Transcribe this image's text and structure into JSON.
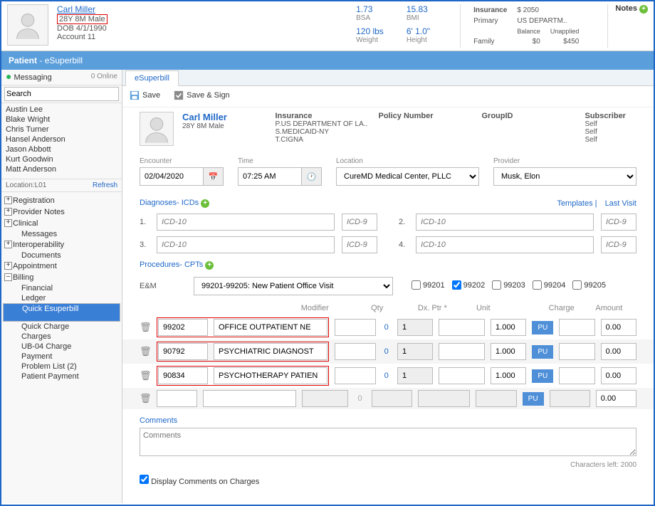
{
  "banner": {
    "name": "Carl Miller",
    "demo": "28Y 8M Male",
    "dob": "DOB 4/1/1990",
    "account": "Account 11",
    "bsa": {
      "val": "1.73",
      "lbl": "BSA"
    },
    "bmi": {
      "val": "15.83",
      "lbl": "BMI"
    },
    "weight": {
      "val": "120 lbs",
      "lbl": "Weight"
    },
    "height": {
      "val": "6' 1.0\"",
      "lbl": "Height"
    },
    "ins": {
      "hdr_ins": "Insurance",
      "hdr_amt": "$ 2050",
      "primary_lbl": "Primary",
      "primary_val": "US DEPARTM..",
      "family_lbl": "Family",
      "bal_lbl": "Balance",
      "unap_lbl": "Unapplied",
      "bal_val": "$0",
      "unap_val": "$450"
    },
    "notes": "Notes"
  },
  "titlebar": {
    "main": "Patient",
    "sub": "- eSuperbill"
  },
  "sidebar": {
    "messaging": "Messaging",
    "online": "0 Online",
    "search_lbl": "Search",
    "users": [
      "Austin Lee",
      "Blake Wright",
      "Chris Turner",
      "Hansel Anderson",
      "Jason Abbott",
      "Kurt Goodwin",
      "Matt Anderson"
    ],
    "loc": "Location:L01",
    "refresh": "Refresh",
    "tree": {
      "registration": "Registration",
      "provider_notes": "Provider Notes",
      "clinical": "Clinical",
      "messages": "Messages",
      "interop": "Interoperability",
      "documents": "Documents",
      "appointment": "Appointment",
      "billing": "Billing",
      "billing_children": [
        "Financial",
        "Ledger",
        "Quick Esuperbill",
        "Quick Charge",
        "Charges",
        "UB-04 Charge",
        "Payment",
        "Problem List (2)",
        "Patient Payment"
      ],
      "billing_selected_index": 2
    }
  },
  "content": {
    "tab": "eSuperbill",
    "save": "Save",
    "save_sign": "Save & Sign",
    "pt": {
      "name": "Carl Miller",
      "demo": "28Y 8M Male",
      "ins_hdr": "Insurance",
      "ins_lines": [
        "P.US DEPARTMENT OF LA..",
        "S.MEDICAID-NY",
        "T.CIGNA"
      ],
      "policy_hdr": "Policy Number",
      "group_hdr": "GroupID",
      "sub_hdr": "Subscriber",
      "sub_lines": [
        "Self",
        "Self",
        "Self"
      ]
    },
    "enc": {
      "encounter_lbl": "Encounter",
      "encounter_val": "02/04/2020",
      "time_lbl": "Time",
      "time_val": "07:25 AM",
      "location_lbl": "Location",
      "location_val": "CureMD Medical Center, PLLC",
      "provider_lbl": "Provider",
      "provider_val": "Musk, Elon"
    },
    "dx": {
      "hdr": "Diagnoses- ICDs",
      "templates": "Templates",
      "last": "Last Visit",
      "ph10": "ICD-10",
      "ph9": "ICD-9",
      "nums": [
        "1.",
        "2.",
        "3.",
        "4."
      ]
    },
    "proc": {
      "hdr": "Procedures- CPTs",
      "em_lbl": "E&M",
      "em_sel": "99201-99205: New Patient Office Visit",
      "em_opts": [
        "99201",
        "99202",
        "99203",
        "99204",
        "99205"
      ],
      "em_checked": "99202",
      "cols": {
        "mod": "Modifier",
        "qty": "Qty",
        "dx": "Dx. Ptr *",
        "unit": "Unit",
        "chg": "Charge",
        "amt": "Amount"
      },
      "rows": [
        {
          "code": "99202",
          "desc": "OFFICE OUTPATIENT NE",
          "q0": "0",
          "qty": "1",
          "unit": "1.000",
          "pu": "PU",
          "amt": "0.00"
        },
        {
          "code": "90792",
          "desc": "PSYCHIATRIC DIAGNOST",
          "q0": "0",
          "qty": "1",
          "unit": "1.000",
          "pu": "PU",
          "amt": "0.00"
        },
        {
          "code": "90834",
          "desc": "PSYCHOTHERAPY PATIEN",
          "q0": "0",
          "qty": "1",
          "unit": "1.000",
          "pu": "PU",
          "amt": "0.00"
        }
      ],
      "blank": {
        "q0": "0",
        "pu": "PU",
        "amt": "0.00"
      }
    },
    "comments": {
      "lbl": "Comments",
      "ph": "Comments",
      "left": "Characters left: 2000"
    },
    "dispchk": "Display Comments on Charges"
  }
}
